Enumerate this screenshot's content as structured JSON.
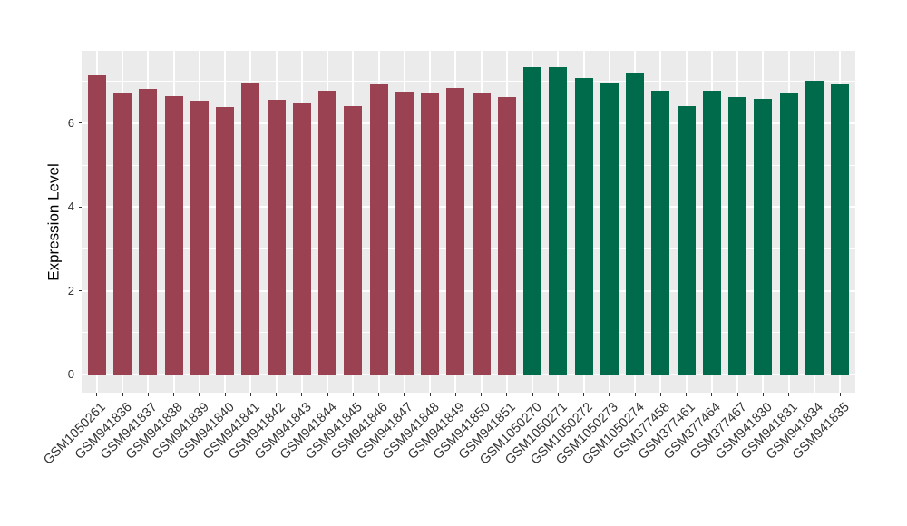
{
  "chart_data": {
    "type": "bar",
    "title": "",
    "xlabel": "",
    "ylabel": "Expression Level",
    "ylim": [
      0,
      7.73
    ],
    "yticks": [
      0,
      2,
      4,
      6
    ],
    "yticks_minor": [
      1,
      3,
      5,
      7
    ],
    "grid": "on",
    "legend": "none",
    "x_label_rotation_deg": 45,
    "panel_bg": "#EBEBEB",
    "grid_color": "#FFFFFF",
    "axis_text_color": "#333333",
    "axis_title_color": "#000000",
    "tick_mark_color": "#333333",
    "group_colors": {
      "group1": "#9A4251",
      "group2": "#006B4A"
    },
    "bars": [
      {
        "label": "GSM1050261",
        "value": 7.15,
        "group": "group1"
      },
      {
        "label": "GSM941836",
        "value": 6.72,
        "group": "group1"
      },
      {
        "label": "GSM941837",
        "value": 6.82,
        "group": "group1"
      },
      {
        "label": "GSM941838",
        "value": 6.64,
        "group": "group1"
      },
      {
        "label": "GSM941839",
        "value": 6.53,
        "group": "group1"
      },
      {
        "label": "GSM941840",
        "value": 6.38,
        "group": "group1"
      },
      {
        "label": "GSM941841",
        "value": 6.95,
        "group": "group1"
      },
      {
        "label": "GSM941842",
        "value": 6.56,
        "group": "group1"
      },
      {
        "label": "GSM941843",
        "value": 6.47,
        "group": "group1"
      },
      {
        "label": "GSM941844",
        "value": 6.78,
        "group": "group1"
      },
      {
        "label": "GSM941845",
        "value": 6.41,
        "group": "group1"
      },
      {
        "label": "GSM941846",
        "value": 6.93,
        "group": "group1"
      },
      {
        "label": "GSM941847",
        "value": 6.76,
        "group": "group1"
      },
      {
        "label": "GSM941848",
        "value": 6.7,
        "group": "group1"
      },
      {
        "label": "GSM941849",
        "value": 6.84,
        "group": "group1"
      },
      {
        "label": "GSM941850",
        "value": 6.71,
        "group": "group1"
      },
      {
        "label": "GSM941851",
        "value": 6.62,
        "group": "group1"
      },
      {
        "label": "GSM1050270",
        "value": 7.34,
        "group": "group2"
      },
      {
        "label": "GSM1050271",
        "value": 7.33,
        "group": "group2"
      },
      {
        "label": "GSM1050272",
        "value": 7.08,
        "group": "group2"
      },
      {
        "label": "GSM1050273",
        "value": 6.98,
        "group": "group2"
      },
      {
        "label": "GSM1050274",
        "value": 7.2,
        "group": "group2"
      },
      {
        "label": "GSM377458",
        "value": 6.77,
        "group": "group2"
      },
      {
        "label": "GSM377461",
        "value": 6.41,
        "group": "group2"
      },
      {
        "label": "GSM377464",
        "value": 6.78,
        "group": "group2"
      },
      {
        "label": "GSM377467",
        "value": 6.62,
        "group": "group2"
      },
      {
        "label": "GSM941830",
        "value": 6.59,
        "group": "group2"
      },
      {
        "label": "GSM941831",
        "value": 6.71,
        "group": "group2"
      },
      {
        "label": "GSM941834",
        "value": 7.01,
        "group": "group2"
      },
      {
        "label": "GSM941835",
        "value": 6.93,
        "group": "group2"
      }
    ]
  }
}
